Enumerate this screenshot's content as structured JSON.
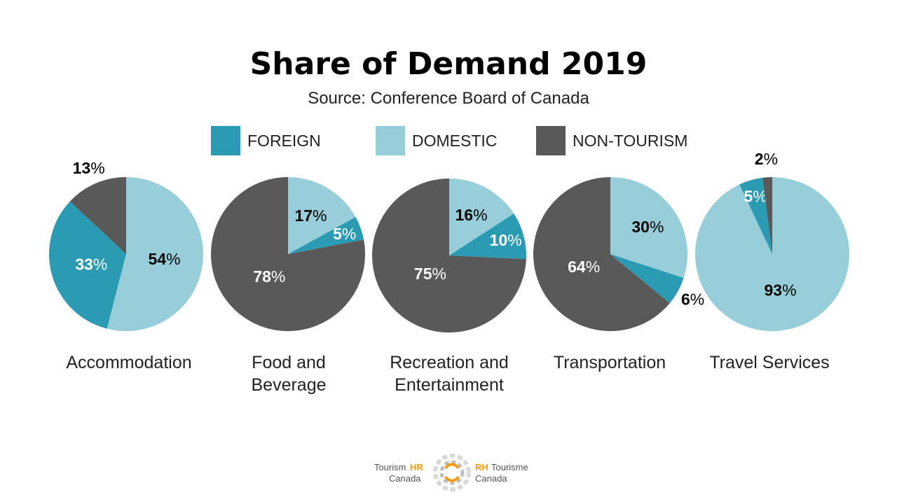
{
  "header": {
    "title": "Share of Demand 2019",
    "subtitle": "Source: Conference Board of Canada"
  },
  "legend": [
    {
      "label": "FOREIGN",
      "color": "#2a9bb3"
    },
    {
      "label": "DOMESTIC",
      "color": "#97ced9"
    },
    {
      "label": "NON-TOURISM",
      "color": "#595959"
    }
  ],
  "chart_data": {
    "type": "pie",
    "title": "Share of Demand 2019",
    "subtitle": "Source: Conference Board of Canada",
    "series_names": [
      "FOREIGN",
      "DOMESTIC",
      "NON-TOURISM"
    ],
    "colors": {
      "FOREIGN": "#2a9bb3",
      "DOMESTIC": "#97ced9",
      "NON-TOURISM": "#595959"
    },
    "pies": [
      {
        "category": "Accommodation",
        "values": {
          "FOREIGN": 33,
          "DOMESTIC": 54,
          "NON-TOURISM": 13
        }
      },
      {
        "category": "Food and Beverage",
        "values": {
          "FOREIGN": 5,
          "DOMESTIC": 17,
          "NON-TOURISM": 78
        }
      },
      {
        "category": "Recreation and Entertainment",
        "values": {
          "FOREIGN": 10,
          "DOMESTIC": 16,
          "NON-TOURISM": 75
        }
      },
      {
        "category": "Transportation",
        "values": {
          "FOREIGN": 6,
          "DOMESTIC": 30,
          "NON-TOURISM": 64
        }
      },
      {
        "category": "Travel Services",
        "values": {
          "FOREIGN": 5,
          "DOMESTIC": 93,
          "NON-TOURISM": 2
        }
      }
    ],
    "percent_sign": "%"
  },
  "footer": {
    "logo_en_word": "Tourism",
    "logo_en_hr": "HR",
    "logo_en_country": "Canada",
    "logo_fr_rh": "RH",
    "logo_fr_word": "Tourisme",
    "logo_fr_country": "Canada"
  }
}
